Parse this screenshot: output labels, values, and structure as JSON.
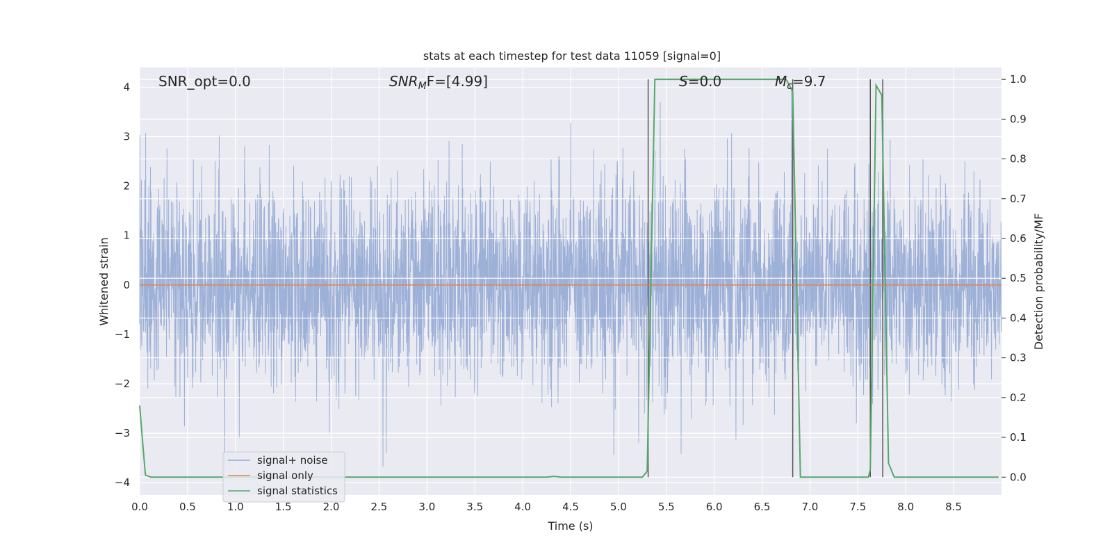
{
  "chart_data": {
    "type": "line",
    "title": "stats at each timestep for test data 11059 [signal=0]",
    "xlabel": "Time (s)",
    "ylabel": "Whitened strain",
    "ylabel_right": "Detection probability/MF",
    "xlim": [
      0.0,
      9.0
    ],
    "ylim": [
      -4.25,
      4.4
    ],
    "ylim_right": [
      -0.045,
      1.03
    ],
    "xticks": [
      "0.0",
      "0.5",
      "1.0",
      "1.5",
      "2.0",
      "2.5",
      "3.0",
      "3.5",
      "4.0",
      "4.5",
      "5.0",
      "5.5",
      "6.0",
      "6.5",
      "7.0",
      "7.5",
      "8.0",
      "8.5"
    ],
    "yticks_left": [
      "4",
      "3",
      "2",
      "1",
      "0",
      "−1",
      "−2",
      "−3",
      "−4"
    ],
    "yticks_right": [
      "1.0",
      "0.9",
      "0.8",
      "0.7",
      "0.6",
      "0.5",
      "0.4",
      "0.3",
      "0.2",
      "0.1",
      "0.0"
    ],
    "grid": true,
    "legend_position": "lower-left",
    "annotations": {
      "snr_opt": "SNR_opt=0.0",
      "snr_mf_main": "SNR",
      "snr_mf_sub": "M",
      "snr_mf_rest": "F=[4.99]",
      "s_main": "S",
      "s_rest": "=0.0",
      "mc_main": "M",
      "mc_sub": "c",
      "mc_rest": "=9.7"
    },
    "series": [
      {
        "name": "signal+ noise",
        "color": "#8fa6d2",
        "description_stats": {
          "min": -3.9,
          "max": 4.0
        }
      },
      {
        "name": "signal only",
        "color": "#dd8452",
        "x": [
          0.0,
          9.0
        ],
        "y": [
          0.0,
          0.0
        ]
      },
      {
        "name": "signal statistics",
        "color": "#55a868",
        "x": [
          0.0,
          0.03,
          0.06,
          0.12,
          0.2,
          0.5,
          1.0,
          2.0,
          3.0,
          4.0,
          4.25,
          4.33,
          4.4,
          5.0,
          5.25,
          5.3,
          5.38,
          5.5,
          6.0,
          6.5,
          6.75,
          6.82,
          6.9,
          7.0,
          7.5,
          7.61,
          7.63,
          7.69,
          7.75,
          7.82,
          7.88,
          8.0,
          8.5,
          8.97
        ],
        "y": [
          0.18,
          0.09,
          0.005,
          0.0,
          0.0,
          0.0,
          0.0,
          0.0,
          0.0,
          0.0,
          0.0,
          0.002,
          0.0,
          0.0,
          0.0,
          0.015,
          1.0,
          1.0,
          1.0,
          1.0,
          1.0,
          0.97,
          0.0,
          0.0,
          0.0,
          0.0,
          0.02,
          0.985,
          0.96,
          0.035,
          0.0,
          0.0,
          0.0,
          0.0
        ]
      }
    ],
    "vertical_lines_x": [
      5.31,
      6.82,
      7.63,
      7.76
    ]
  }
}
